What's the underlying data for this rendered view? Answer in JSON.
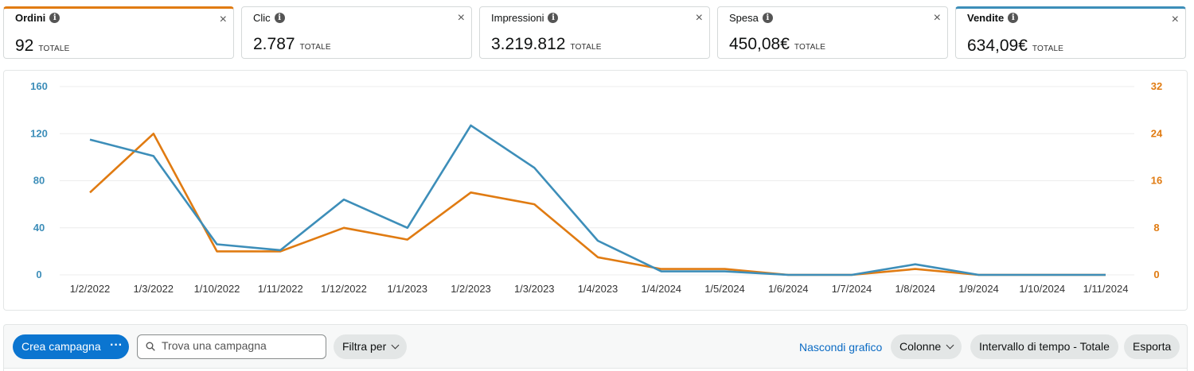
{
  "metrics": [
    {
      "title": "Ordini",
      "value": "92",
      "unit": "TOTALE",
      "selected": "orange"
    },
    {
      "title": "Clic",
      "value": "2.787",
      "unit": "TOTALE",
      "selected": ""
    },
    {
      "title": "Impressioni",
      "value": "3.219.812",
      "unit": "TOTALE",
      "selected": ""
    },
    {
      "title": "Spesa",
      "value": "450,08€",
      "unit": "TOTALE",
      "selected": ""
    },
    {
      "title": "Vendite",
      "value": "634,09€",
      "unit": "TOTALE",
      "selected": "blue"
    }
  ],
  "icons": {
    "info": "info-icon",
    "close": "close-icon",
    "search": "search-icon",
    "more": "more-icon",
    "chevron": "chevron-down-icon"
  },
  "info_glyph": "i",
  "close_glyph": "×",
  "more_glyph": "···",
  "colors": {
    "blue": "#3d8eb9",
    "orange": "#e07b12",
    "primary": "#0b75d0",
    "link": "#0b6bc4"
  },
  "chart_data": {
    "type": "line",
    "x": [
      "1/2/2022",
      "1/3/2022",
      "1/10/2022",
      "1/11/2022",
      "1/12/2022",
      "1/1/2023",
      "1/2/2023",
      "1/3/2023",
      "1/4/2023",
      "1/4/2024",
      "1/5/2024",
      "1/6/2024",
      "1/7/2024",
      "1/8/2024",
      "1/9/2024",
      "1/10/2024",
      "1/11/2024"
    ],
    "series": [
      {
        "values": [
          115,
          101,
          26,
          21,
          64,
          40,
          127,
          91,
          29,
          3,
          3,
          0,
          0,
          9,
          0,
          0,
          0
        ],
        "color": "#3d8eb9",
        "axis": "left"
      },
      {
        "values": [
          14,
          24,
          4,
          4,
          8,
          6,
          14,
          12,
          3,
          1,
          1,
          0,
          0,
          1,
          0,
          0,
          0
        ],
        "color": "#e07b12",
        "axis": "right"
      }
    ],
    "y_left": {
      "ticks": [
        "160",
        "120",
        "80",
        "40",
        "0"
      ],
      "min": 0,
      "max": 160
    },
    "y_right": {
      "ticks": [
        "32",
        "24",
        "16",
        "8",
        "0"
      ],
      "min": 0,
      "max": 32
    },
    "grid": true
  },
  "toolbar": {
    "create_label": "Crea campagna",
    "search_placeholder": "Trova una campagna",
    "filter_label": "Filtra per",
    "hide_chart_label": "Nascondi grafico",
    "columns_label": "Colonne",
    "interval_label": "Intervallo di tempo - Totale",
    "export_label": "Esporta"
  }
}
